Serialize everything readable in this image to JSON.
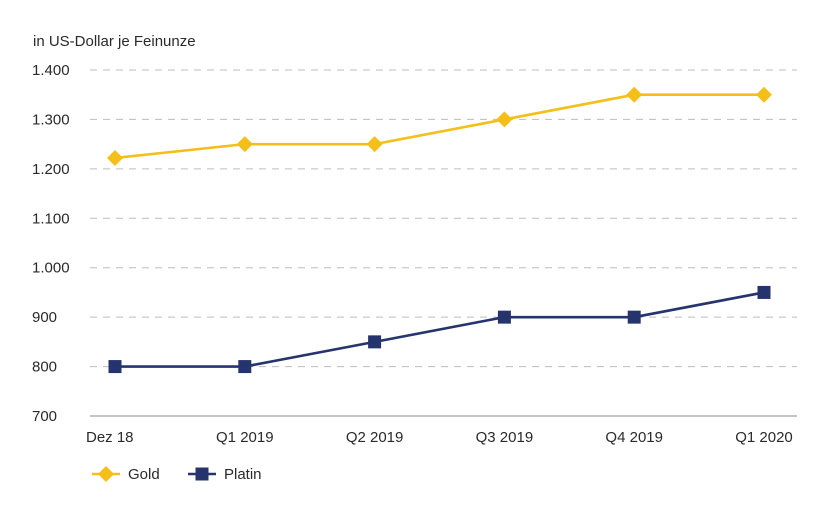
{
  "chart_data": {
    "type": "line",
    "unit_label": "in US-Dollar je Feinunze",
    "categories": [
      "Dez 18",
      "Q1 2019",
      "Q2 2019",
      "Q3 2019",
      "Q4 2019",
      "Q1 2020"
    ],
    "y_ticks": [
      700,
      800,
      900,
      1000,
      1100,
      1200,
      1300,
      1400
    ],
    "y_tick_labels": [
      "700",
      "800",
      "900",
      "1.000",
      "1.100",
      "1.200",
      "1.300",
      "1.400"
    ],
    "ylim": [
      700,
      1400
    ],
    "grid": "horizontal-dashed",
    "legend_position": "bottom-left",
    "series": [
      {
        "name": "Gold",
        "marker": "diamond",
        "color": "#f5bf1a",
        "values": [
          1222,
          1250,
          1250,
          1300,
          1350,
          1350
        ]
      },
      {
        "name": "Platin",
        "marker": "square",
        "color": "#26346e",
        "values": [
          800,
          800,
          850,
          900,
          900,
          950
        ]
      }
    ]
  }
}
